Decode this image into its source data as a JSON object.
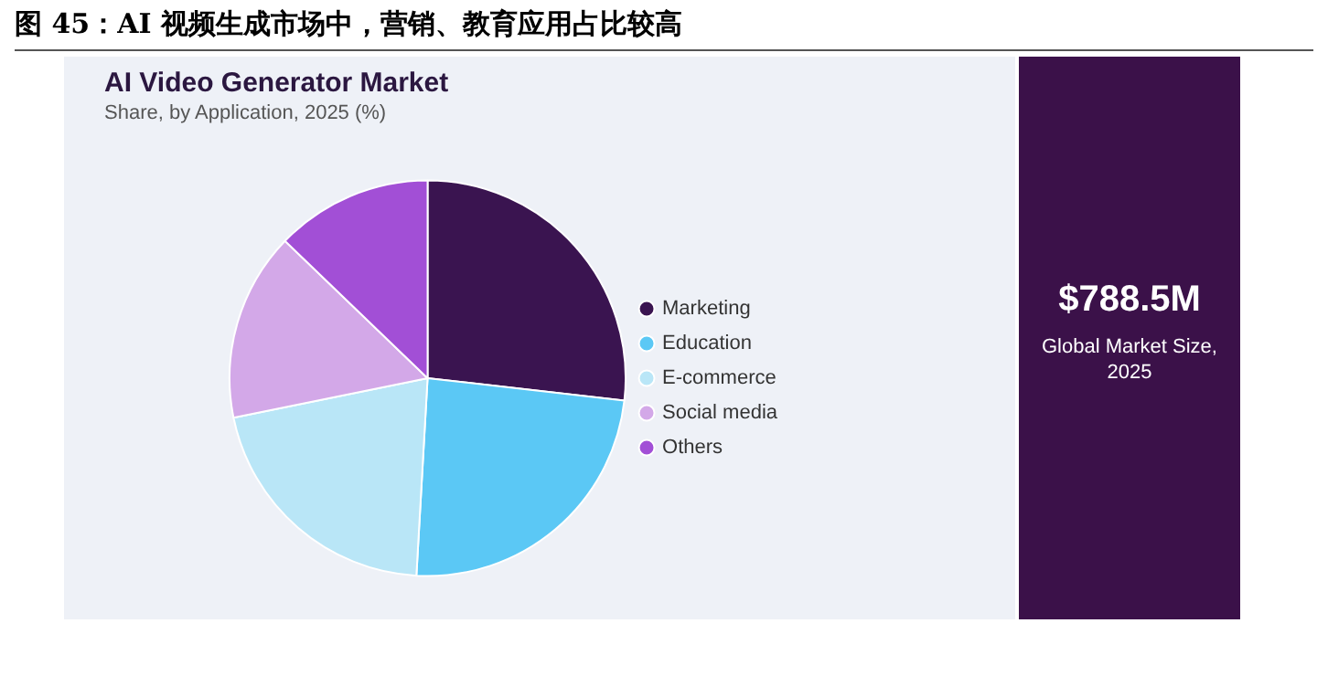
{
  "chart_data": {
    "type": "pie",
    "title": "图 45：AI 视频生成市场中，营销、教育应用占比较高",
    "subtitle": "AI Video Generator Market",
    "categories": [
      "Marketing",
      "Education",
      "E-commerce",
      "Social media",
      "Others"
    ],
    "values": [
      26.8,
      24.1,
      20.9,
      15.4,
      12.8
    ],
    "colors": [
      "#3a1450",
      "#5bc8f5",
      "#b9e6f7",
      "#d3a8e8",
      "#a24fd6"
    ],
    "legend": "right",
    "annotations": [
      "Share, by Application, 2025 (%)",
      "$788.5M",
      "Global Market Size, 2025"
    ]
  }
}
